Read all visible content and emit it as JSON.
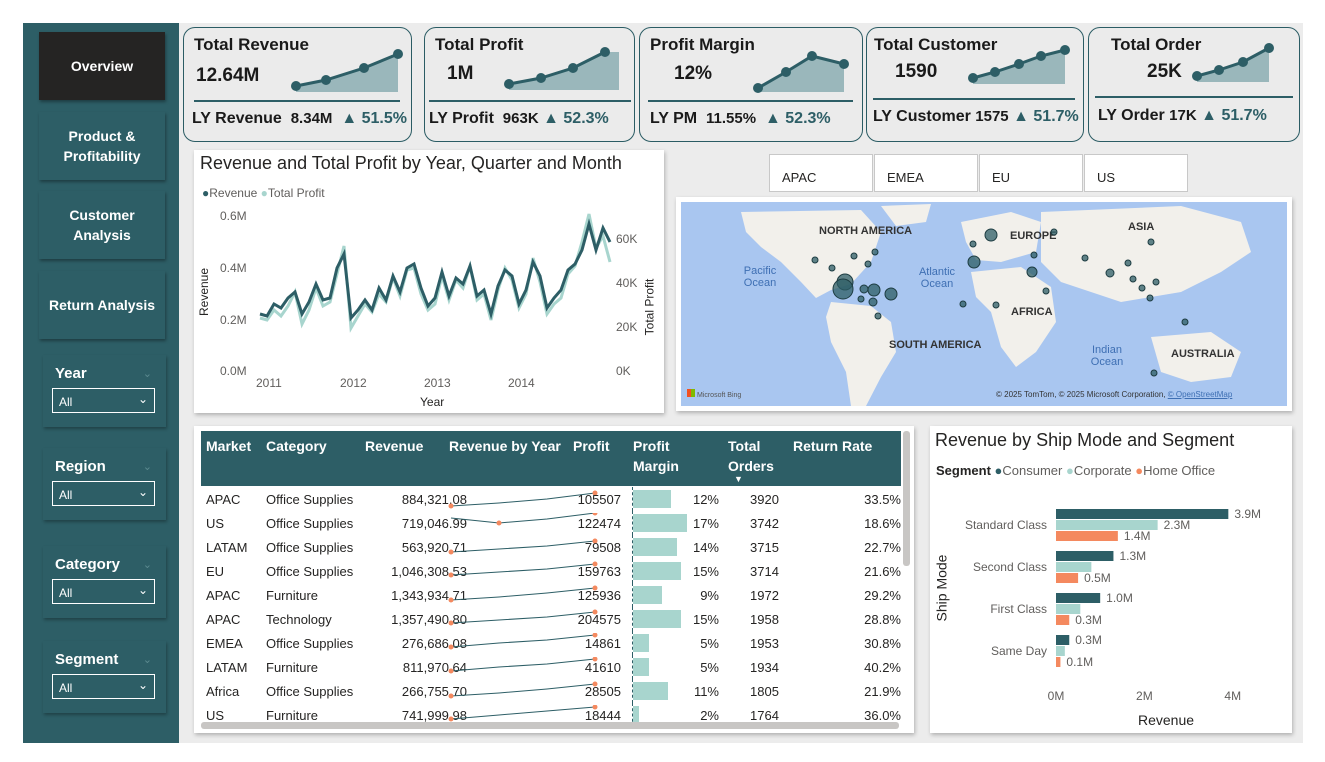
{
  "nav": {
    "items": [
      "Overview",
      "Product & Profitability",
      "Customer Analysis",
      "Return Analysis"
    ]
  },
  "slicers": [
    {
      "label": "Year",
      "value": "All"
    },
    {
      "label": "Region",
      "value": "All"
    },
    {
      "label": "Category",
      "value": "All"
    },
    {
      "label": "Segment",
      "value": "All"
    }
  ],
  "kpis": [
    {
      "title": "Total Revenue",
      "value": "12.64M",
      "ly_label": "LY Revenue",
      "ly_value": "8.34M",
      "growth": "51.5%"
    },
    {
      "title": "Total Profit",
      "value": "1M",
      "ly_label": "LY Profit",
      "ly_value": "963K",
      "growth": "52.3%"
    },
    {
      "title": "Profit Margin",
      "value": "12%",
      "ly_label": "LY PM",
      "ly_value": "11.55%",
      "growth": "52.3%"
    },
    {
      "title": "Total Customer",
      "value": "1590",
      "ly_label": "LY Customer",
      "ly_value": "1575",
      "growth": "51.7%"
    },
    {
      "title": "Total Order",
      "value": "25K",
      "ly_label": "LY Order",
      "ly_value": "17K",
      "growth": "51.7%"
    }
  ],
  "line_chart": {
    "title": "Revenue and Total Profit by Year, Quarter and Month",
    "legend": [
      "Revenue",
      "Total Profit"
    ],
    "ylabel_left": "Revenue",
    "ylabel_right": "Total Profit",
    "xlabel": "Year",
    "left_ticks": [
      "0.6M",
      "0.4M",
      "0.2M",
      "0.0M"
    ],
    "right_ticks": [
      "60K",
      "40K",
      "20K",
      "0K"
    ],
    "x_ticks": [
      "2011",
      "2012",
      "2013",
      "2014"
    ],
    "colors": {
      "revenue": "#2d5e66",
      "profit": "#a8d5ce"
    }
  },
  "region_tabs": [
    "APAC",
    "EMEA",
    "EU",
    "US"
  ],
  "map": {
    "labels": [
      "NORTH AMERICA",
      "EUROPE",
      "ASIA",
      "AFRICA",
      "SOUTH AMERICA",
      "AUSTRALIA",
      "Pacific Ocean",
      "Atlantic Ocean",
      "Indian Ocean"
    ],
    "attribution": "© 2025 TomTom, © 2025 Microsoft Corporation,",
    "osm_link": "© OpenStreetMap",
    "provider": "Microsoft Bing"
  },
  "table": {
    "headers": [
      "Market",
      "Category",
      "Revenue",
      "Revenue by Year",
      "Profit",
      "Profit Margin",
      "Total Orders",
      "Return Rate"
    ],
    "rows": [
      {
        "market": "APAC",
        "category": "Office Supplies",
        "revenue": "884,321.08",
        "profit": "105507",
        "margin": "12%",
        "margin_val": 12,
        "orders": "3920",
        "return_rate": "33.5%"
      },
      {
        "market": "US",
        "category": "Office Supplies",
        "revenue": "719,046.99",
        "profit": "122474",
        "margin": "17%",
        "margin_val": 17,
        "orders": "3742",
        "return_rate": "18.6%"
      },
      {
        "market": "LATAM",
        "category": "Office Supplies",
        "revenue": "563,920.71",
        "profit": "79508",
        "margin": "14%",
        "margin_val": 14,
        "orders": "3715",
        "return_rate": "22.7%"
      },
      {
        "market": "EU",
        "category": "Office Supplies",
        "revenue": "1,046,308.53",
        "profit": "159763",
        "margin": "15%",
        "margin_val": 15,
        "orders": "3714",
        "return_rate": "21.6%"
      },
      {
        "market": "APAC",
        "category": "Furniture",
        "revenue": "1,343,934.71",
        "profit": "125936",
        "margin": "9%",
        "margin_val": 9,
        "orders": "1972",
        "return_rate": "29.2%"
      },
      {
        "market": "APAC",
        "category": "Technology",
        "revenue": "1,357,490.80",
        "profit": "204575",
        "margin": "15%",
        "margin_val": 15,
        "orders": "1958",
        "return_rate": "28.8%"
      },
      {
        "market": "EMEA",
        "category": "Office Supplies",
        "revenue": "276,686.08",
        "profit": "14861",
        "margin": "5%",
        "margin_val": 5,
        "orders": "1953",
        "return_rate": "30.8%"
      },
      {
        "market": "LATAM",
        "category": "Furniture",
        "revenue": "811,970.64",
        "profit": "41610",
        "margin": "5%",
        "margin_val": 5,
        "orders": "1934",
        "return_rate": "40.2%"
      },
      {
        "market": "Africa",
        "category": "Office Supplies",
        "revenue": "266,755.70",
        "profit": "28505",
        "margin": "11%",
        "margin_val": 11,
        "orders": "1805",
        "return_rate": "21.9%"
      },
      {
        "market": "US",
        "category": "Furniture",
        "revenue": "741,999.98",
        "profit": "18444",
        "margin": "2%",
        "margin_val": 2,
        "orders": "1764",
        "return_rate": "36.0%"
      }
    ]
  },
  "chart_data": {
    "type": "bar",
    "title": "Revenue by Ship Mode and Segment",
    "legend_title": "Segment",
    "categories": [
      "Standard Class",
      "Second Class",
      "First Class",
      "Same Day"
    ],
    "series": [
      {
        "name": "Consumer",
        "values": [
          3.9,
          1.3,
          1.0,
          0.3
        ],
        "labels": [
          "3.9M",
          "1.3M",
          "1.0M",
          "0.3M"
        ],
        "color": "#2d5e66"
      },
      {
        "name": "Corporate",
        "values": [
          2.3,
          0.8,
          0.55,
          0.2
        ],
        "labels": [
          "2.3M",
          "",
          "",
          ""
        ],
        "color": "#a8d5ce"
      },
      {
        "name": "Home Office",
        "values": [
          1.4,
          0.5,
          0.3,
          0.1
        ],
        "labels": [
          "1.4M",
          "0.5M",
          "0.3M",
          "0.1M"
        ],
        "color": "#f4895f"
      }
    ],
    "xlabel": "Revenue",
    "ylabel": "Ship Mode",
    "x_ticks": [
      "0M",
      "2M",
      "4M"
    ],
    "xlim": [
      0,
      4.3
    ]
  }
}
